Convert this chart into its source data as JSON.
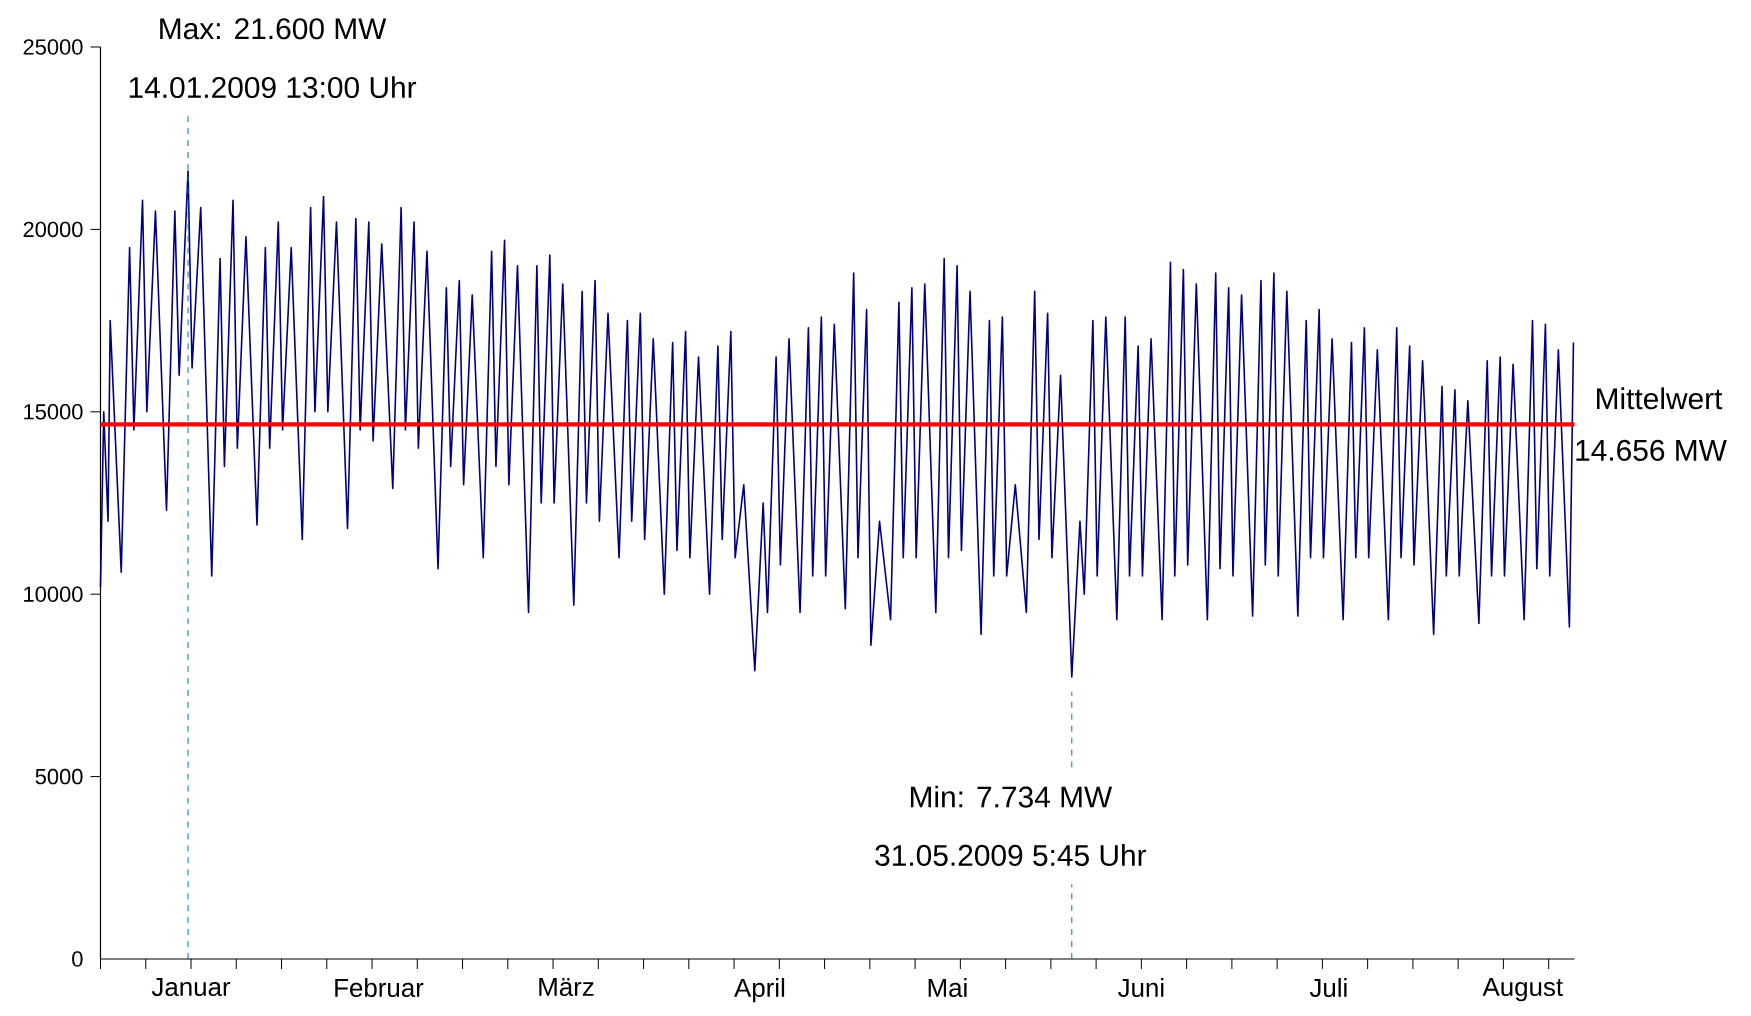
{
  "chart_data": {
    "type": "line",
    "color": "#000080",
    "x": [
      "2009-01-01T00:00",
      "2009-01-01T12:00",
      "2009-01-02T04:00",
      "2009-01-02T12:00",
      "2009-01-04T05:00",
      "2009-01-05T12:00",
      "2009-01-06T04:00",
      "2009-01-07T12:00",
      "2009-01-08T04:00",
      "2009-01-09T12:00",
      "2009-01-11T05:00",
      "2009-01-12T12:00",
      "2009-01-13T04:00",
      "2009-01-14T13:00",
      "2009-01-15T04:00",
      "2009-01-16T12:00",
      "2009-01-18T05:00",
      "2009-01-19T12:00",
      "2009-01-20T04:00",
      "2009-01-21T12:00",
      "2009-01-22T04:00",
      "2009-01-23T12:00",
      "2009-01-25T05:00",
      "2009-01-26T12:00",
      "2009-01-27T04:00",
      "2009-01-28T12:00",
      "2009-01-29T04:00",
      "2009-01-30T12:00",
      "2009-02-01T05:00",
      "2009-02-02T12:00",
      "2009-02-03T04:00",
      "2009-02-04T12:00",
      "2009-02-05T04:00",
      "2009-02-06T12:00",
      "2009-02-08T05:00",
      "2009-02-09T12:00",
      "2009-02-10T04:00",
      "2009-02-11T12:00",
      "2009-02-12T04:00",
      "2009-02-13T12:00",
      "2009-02-15T05:00",
      "2009-02-16T12:00",
      "2009-02-17T04:00",
      "2009-02-18T12:00",
      "2009-02-19T04:00",
      "2009-02-20T12:00",
      "2009-02-22T05:00",
      "2009-02-23T12:00",
      "2009-02-24T04:00",
      "2009-02-25T12:00",
      "2009-02-26T04:00",
      "2009-02-27T12:00",
      "2009-03-01T05:00",
      "2009-03-02T12:00",
      "2009-03-03T04:00",
      "2009-03-04T12:00",
      "2009-03-05T04:00",
      "2009-03-06T12:00",
      "2009-03-08T05:00",
      "2009-03-09T12:00",
      "2009-03-10T04:00",
      "2009-03-11T12:00",
      "2009-03-12T04:00",
      "2009-03-13T12:00",
      "2009-03-15T05:00",
      "2009-03-16T12:00",
      "2009-03-17T04:00",
      "2009-03-18T12:00",
      "2009-03-19T04:00",
      "2009-03-20T12:00",
      "2009-03-22T05:00",
      "2009-03-23T12:00",
      "2009-03-24T04:00",
      "2009-03-25T12:00",
      "2009-03-26T04:00",
      "2009-03-27T12:00",
      "2009-03-29T05:00",
      "2009-03-30T12:00",
      "2009-03-31T04:00",
      "2009-04-01T12:00",
      "2009-04-02T04:00",
      "2009-04-03T12:00",
      "2009-04-05T05:00",
      "2009-04-06T12:00",
      "2009-04-07T04:00",
      "2009-04-08T12:00",
      "2009-04-09T04:00",
      "2009-04-10T12:00",
      "2009-04-12T05:00",
      "2009-04-13T12:00",
      "2009-04-14T04:00",
      "2009-04-15T12:00",
      "2009-04-16T04:00",
      "2009-04-17T12:00",
      "2009-04-19T05:00",
      "2009-04-20T12:00",
      "2009-04-21T04:00",
      "2009-04-22T12:00",
      "2009-04-23T04:00",
      "2009-04-24T12:00",
      "2009-04-26T05:00",
      "2009-04-27T12:00",
      "2009-04-28T04:00",
      "2009-04-29T12:00",
      "2009-04-30T04:00",
      "2009-05-01T12:00",
      "2009-05-03T05:00",
      "2009-05-04T12:00",
      "2009-05-05T04:00",
      "2009-05-06T12:00",
      "2009-05-07T04:00",
      "2009-05-08T12:00",
      "2009-05-10T05:00",
      "2009-05-11T12:00",
      "2009-05-12T04:00",
      "2009-05-13T12:00",
      "2009-05-14T04:00",
      "2009-05-15T12:00",
      "2009-05-17T05:00",
      "2009-05-18T12:00",
      "2009-05-19T04:00",
      "2009-05-20T12:00",
      "2009-05-21T04:00",
      "2009-05-22T12:00",
      "2009-05-24T05:00",
      "2009-05-25T12:00",
      "2009-05-26T04:00",
      "2009-05-27T12:00",
      "2009-05-28T04:00",
      "2009-05-29T12:00",
      "2009-05-31T05:45",
      "2009-06-01T12:00",
      "2009-06-02T04:00",
      "2009-06-03T12:00",
      "2009-06-04T04:00",
      "2009-06-05T12:00",
      "2009-06-07T05:00",
      "2009-06-08T12:00",
      "2009-06-09T04:00",
      "2009-06-10T12:00",
      "2009-06-11T04:00",
      "2009-06-12T12:00",
      "2009-06-14T05:00",
      "2009-06-15T12:00",
      "2009-06-16T04:00",
      "2009-06-17T12:00",
      "2009-06-18T04:00",
      "2009-06-19T12:00",
      "2009-06-21T05:00",
      "2009-06-22T12:00",
      "2009-06-23T04:00",
      "2009-06-24T12:00",
      "2009-06-25T04:00",
      "2009-06-26T12:00",
      "2009-06-28T05:00",
      "2009-06-29T12:00",
      "2009-06-30T04:00",
      "2009-07-01T12:00",
      "2009-07-02T04:00",
      "2009-07-03T12:00",
      "2009-07-05T05:00",
      "2009-07-06T12:00",
      "2009-07-07T04:00",
      "2009-07-08T12:00",
      "2009-07-09T04:00",
      "2009-07-10T12:00",
      "2009-07-12T05:00",
      "2009-07-13T12:00",
      "2009-07-14T04:00",
      "2009-07-15T12:00",
      "2009-07-16T04:00",
      "2009-07-17T12:00",
      "2009-07-19T05:00",
      "2009-07-20T12:00",
      "2009-07-21T04:00",
      "2009-07-22T12:00",
      "2009-07-23T04:00",
      "2009-07-24T12:00",
      "2009-07-26T05:00",
      "2009-07-27T12:00",
      "2009-07-28T04:00",
      "2009-07-29T12:00",
      "2009-07-30T04:00",
      "2009-07-31T12:00",
      "2009-08-02T05:00",
      "2009-08-03T12:00",
      "2009-08-04T04:00",
      "2009-08-05T12:00",
      "2009-08-06T04:00",
      "2009-08-07T12:00",
      "2009-08-09T05:00",
      "2009-08-10T12:00",
      "2009-08-11T04:00",
      "2009-08-12T12:00",
      "2009-08-13T04:00",
      "2009-08-14T12:00",
      "2009-08-16T05:00",
      "2009-08-16T20:00"
    ],
    "values": [
      10200,
      15000,
      12000,
      17500,
      10600,
      19500,
      14500,
      20800,
      15000,
      20500,
      12300,
      20500,
      16000,
      21600,
      16200,
      20600,
      10500,
      19200,
      13500,
      20800,
      14000,
      19800,
      11900,
      19500,
      14000,
      20200,
      14500,
      19500,
      11500,
      20600,
      15000,
      20900,
      15000,
      20200,
      11800,
      20300,
      14500,
      20200,
      14200,
      19600,
      12900,
      20600,
      14500,
      20200,
      14000,
      19400,
      10700,
      18400,
      13500,
      18600,
      13000,
      18200,
      11000,
      19400,
      13500,
      19700,
      13000,
      19000,
      9500,
      19000,
      12500,
      19300,
      12500,
      18500,
      9700,
      18300,
      12500,
      18600,
      12000,
      17700,
      11000,
      17500,
      12000,
      17700,
      11500,
      17000,
      10000,
      16900,
      11200,
      17200,
      11000,
      16500,
      10000,
      16800,
      11500,
      17200,
      11000,
      13000,
      7900,
      12500,
      9500,
      16500,
      10800,
      17000,
      9500,
      17300,
      10500,
      17600,
      10500,
      17400,
      9600,
      18800,
      11000,
      17800,
      8600,
      12000,
      9300,
      18000,
      11000,
      18400,
      11000,
      18500,
      9500,
      19200,
      11000,
      19000,
      11200,
      18300,
      8900,
      17500,
      10500,
      17600,
      10500,
      13000,
      9500,
      18300,
      11500,
      17700,
      11000,
      16000,
      7734,
      12000,
      10000,
      17500,
      10500,
      17600,
      9300,
      17600,
      10500,
      16800,
      10500,
      17000,
      9300,
      19100,
      10500,
      18900,
      10800,
      18500,
      9300,
      18800,
      10700,
      18400,
      10500,
      18200,
      9400,
      18600,
      10800,
      18800,
      10500,
      18300,
      9400,
      17500,
      11000,
      17800,
      11000,
      17000,
      9300,
      16900,
      11000,
      17300,
      11000,
      16700,
      9300,
      17300,
      11000,
      16800,
      10800,
      16400,
      8900,
      15700,
      10500,
      15600,
      10500,
      15300,
      9200,
      16400,
      10500,
      16500,
      10500,
      16300,
      9300,
      17500,
      10700,
      17400,
      10500,
      16700,
      9100,
      16900
    ],
    "xlim": [
      "2009-01-01",
      "2009-08-17"
    ],
    "xticks": [
      {
        "value": "2009-01-15",
        "label": "Januar"
      },
      {
        "value": "2009-02-13",
        "label": "Februar"
      },
      {
        "value": "2009-03-14",
        "label": "März"
      },
      {
        "value": "2009-04-13",
        "label": "April"
      },
      {
        "value": "2009-05-12",
        "label": "Mai"
      },
      {
        "value": "2009-06-11",
        "label": "Juni"
      },
      {
        "value": "2009-07-10",
        "label": "Juli"
      },
      {
        "value": "2009-08-09",
        "label": "August"
      },
      {
        "value": "2009-01-01",
        "label": null
      },
      {
        "value": "2009-01-08",
        "label": null
      },
      {
        "value": "2009-01-15",
        "label": null
      },
      {
        "value": "2009-01-22",
        "label": null
      },
      {
        "value": "2009-01-29",
        "label": null
      },
      {
        "value": "2009-02-05",
        "label": null
      },
      {
        "value": "2009-02-12",
        "label": null
      },
      {
        "value": "2009-02-19",
        "label": null
      },
      {
        "value": "2009-02-26",
        "label": null
      },
      {
        "value": "2009-03-05",
        "label": null
      },
      {
        "value": "2009-03-12",
        "label": null
      },
      {
        "value": "2009-03-19",
        "label": null
      },
      {
        "value": "2009-03-26",
        "label": null
      },
      {
        "value": "2009-04-02",
        "label": null
      },
      {
        "value": "2009-04-09",
        "label": null
      },
      {
        "value": "2009-04-16",
        "label": null
      },
      {
        "value": "2009-04-23",
        "label": null
      },
      {
        "value": "2009-04-30",
        "label": null
      },
      {
        "value": "2009-05-07",
        "label": null
      },
      {
        "value": "2009-05-14",
        "label": null
      },
      {
        "value": "2009-05-21",
        "label": null
      },
      {
        "value": "2009-05-28",
        "label": null
      },
      {
        "value": "2009-06-04",
        "label": null
      },
      {
        "value": "2009-06-11",
        "label": null
      },
      {
        "value": "2009-06-18",
        "label": null
      },
      {
        "value": "2009-06-25",
        "label": null
      },
      {
        "value": "2009-07-02",
        "label": null
      },
      {
        "value": "2009-07-09",
        "label": null
      },
      {
        "value": "2009-07-16",
        "label": null
      },
      {
        "value": "2009-07-23",
        "label": null
      },
      {
        "value": "2009-07-30",
        "label": null
      },
      {
        "value": "2009-08-06",
        "label": null
      },
      {
        "value": "2009-08-13",
        "label": null
      }
    ],
    "ylim": [
      0,
      25000
    ],
    "yticks": [
      0,
      5000,
      10000,
      15000,
      20000,
      25000
    ],
    "ref_lines": [
      {
        "axis": "x",
        "value": "2009-01-14T13:00",
        "label": "Max: 21.600 MW",
        "color": "#0070c0",
        "line_style": "dashed"
      },
      {
        "axis": "x",
        "value": "2009-05-31T05:45",
        "label": "Min: 7.734 MW",
        "color": "#0070c0",
        "line_style": "dashed"
      },
      {
        "axis": "y",
        "value": 14656,
        "label": "Mittelwert",
        "color": "#ff0000",
        "line_style": "solid"
      }
    ],
    "annotations": [
      "14.01.2009 13:00 Uhr",
      "31.05.2009 5:45 Uhr",
      "14.656 MW"
    ]
  }
}
